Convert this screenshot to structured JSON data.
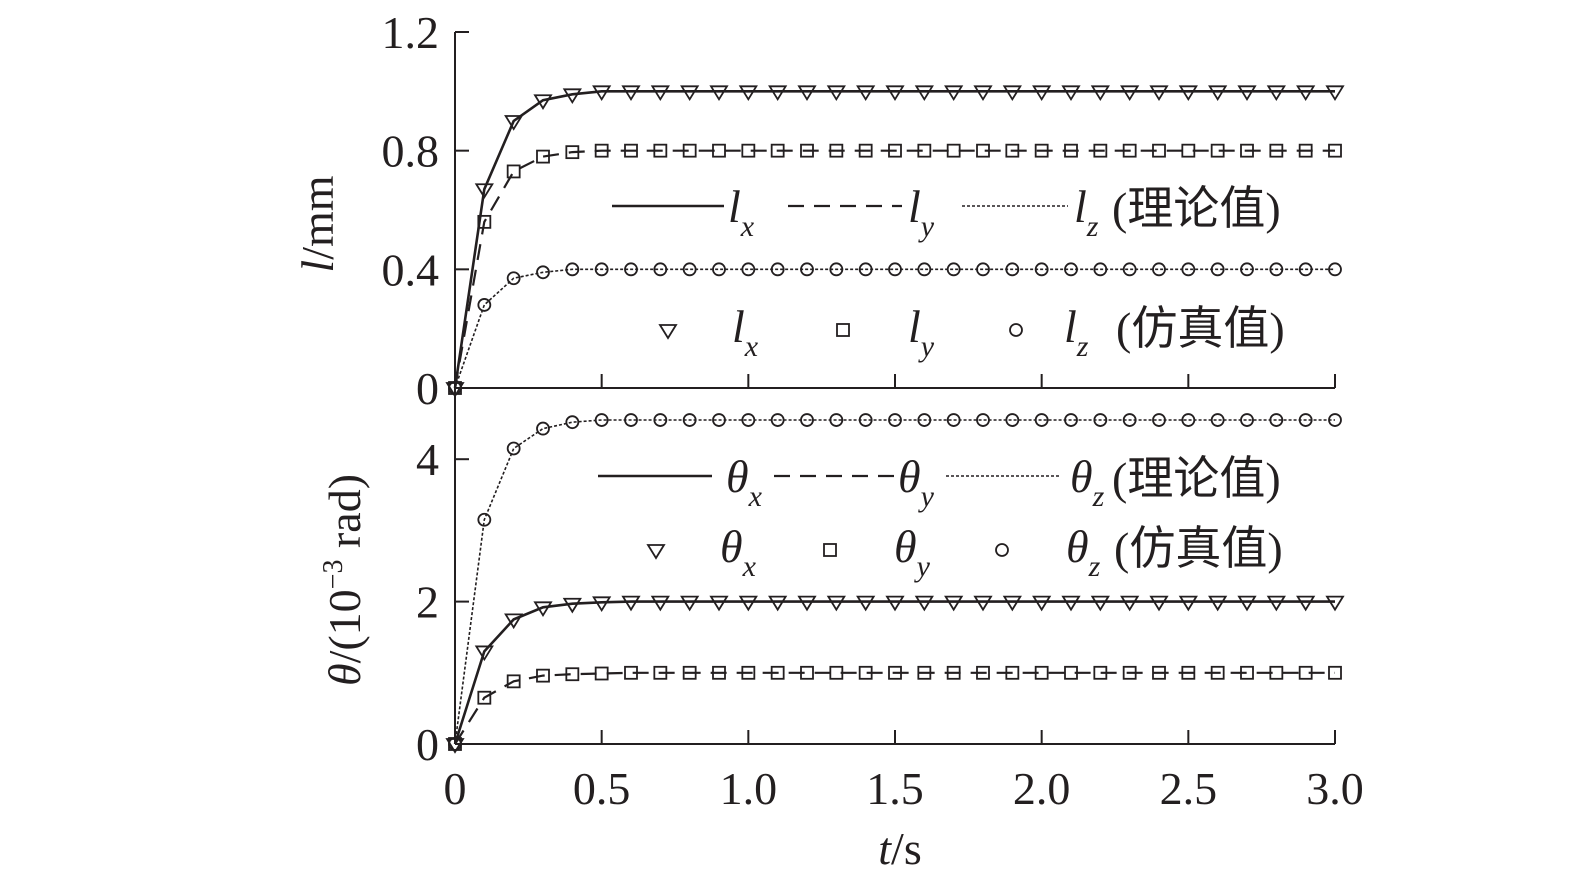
{
  "chart_data": [
    {
      "type": "line",
      "xlabel": {
        "var": "t",
        "unit": "/s"
      },
      "ylabel": {
        "var": "l",
        "unit": "/mm"
      },
      "xlim": [
        0,
        3.0
      ],
      "ylim": [
        0,
        1.2
      ],
      "xticks": [
        "0",
        "0.5",
        "1.0",
        "1.5",
        "2.0",
        "2.5",
        "3.0"
      ],
      "yticks": [
        "0",
        "0.4",
        "0.8",
        "1.2"
      ],
      "legend": {
        "theory_suffix": "(理论值)",
        "sim_suffix": "(仿真值)",
        "entries": [
          {
            "base": "l",
            "sub": "x"
          },
          {
            "base": "l",
            "sub": "y"
          },
          {
            "base": "l",
            "sub": "z"
          }
        ]
      },
      "x": [
        0,
        0.1,
        0.2,
        0.3,
        0.4,
        0.5,
        0.6,
        0.7,
        0.8,
        0.9,
        1.0,
        1.1,
        1.2,
        1.3,
        1.4,
        1.5,
        1.6,
        1.7,
        1.8,
        1.9,
        2.0,
        2.1,
        2.2,
        2.3,
        2.4,
        2.5,
        2.6,
        2.7,
        2.8,
        2.9,
        3.0
      ],
      "series": [
        {
          "name": "l_x",
          "line": "solid",
          "marker": "triangle",
          "values": [
            0,
            0.67,
            0.9,
            0.97,
            0.99,
            1.0,
            1.0,
            1.0,
            1.0,
            1.0,
            1.0,
            1.0,
            1.0,
            1.0,
            1.0,
            1.0,
            1.0,
            1.0,
            1.0,
            1.0,
            1.0,
            1.0,
            1.0,
            1.0,
            1.0,
            1.0,
            1.0,
            1.0,
            1.0,
            1.0,
            1.0
          ]
        },
        {
          "name": "l_y",
          "line": "dashed",
          "marker": "square",
          "values": [
            0,
            0.56,
            0.73,
            0.78,
            0.795,
            0.8,
            0.8,
            0.8,
            0.8,
            0.8,
            0.8,
            0.8,
            0.8,
            0.8,
            0.8,
            0.8,
            0.8,
            0.8,
            0.8,
            0.8,
            0.8,
            0.8,
            0.8,
            0.8,
            0.8,
            0.8,
            0.8,
            0.8,
            0.8,
            0.8,
            0.8
          ]
        },
        {
          "name": "l_z",
          "line": "dotted",
          "marker": "circle",
          "values": [
            0,
            0.28,
            0.37,
            0.39,
            0.4,
            0.4,
            0.4,
            0.4,
            0.4,
            0.4,
            0.4,
            0.4,
            0.4,
            0.4,
            0.4,
            0.4,
            0.4,
            0.4,
            0.4,
            0.4,
            0.4,
            0.4,
            0.4,
            0.4,
            0.4,
            0.4,
            0.4,
            0.4,
            0.4,
            0.4,
            0.4
          ]
        }
      ]
    },
    {
      "type": "line",
      "xlabel": {
        "var": "t",
        "unit": "/s"
      },
      "ylabel": {
        "var": "θ",
        "unit": "/(10",
        "sup": "−3",
        "unit2": " rad)"
      },
      "xlim": [
        0,
        3.0
      ],
      "ylim": [
        0,
        5
      ],
      "xticks": [
        "0",
        "0.5",
        "1.0",
        "1.5",
        "2.0",
        "2.5",
        "3.0"
      ],
      "yticks": [
        "0",
        "2",
        "4"
      ],
      "legend": {
        "theory_suffix": "(理论值)",
        "sim_suffix": "(仿真值)",
        "entries": [
          {
            "base": "θ",
            "sub": "x"
          },
          {
            "base": "θ",
            "sub": "y"
          },
          {
            "base": "θ",
            "sub": "z"
          }
        ]
      },
      "x": [
        0,
        0.1,
        0.2,
        0.3,
        0.4,
        0.5,
        0.6,
        0.7,
        0.8,
        0.9,
        1.0,
        1.1,
        1.2,
        1.3,
        1.4,
        1.5,
        1.6,
        1.7,
        1.8,
        1.9,
        2.0,
        2.1,
        2.2,
        2.3,
        2.4,
        2.5,
        2.6,
        2.7,
        2.8,
        2.9,
        3.0
      ],
      "series": [
        {
          "name": "θ_x",
          "line": "solid",
          "marker": "triangle",
          "values": [
            0,
            1.3,
            1.75,
            1.92,
            1.97,
            1.99,
            2.0,
            2.0,
            2.0,
            2.0,
            2.0,
            2.0,
            2.0,
            2.0,
            2.0,
            2.0,
            2.0,
            2.0,
            2.0,
            2.0,
            2.0,
            2.0,
            2.0,
            2.0,
            2.0,
            2.0,
            2.0,
            2.0,
            2.0,
            2.0,
            2.0
          ]
        },
        {
          "name": "θ_y",
          "line": "dashed",
          "marker": "square",
          "values": [
            0,
            0.65,
            0.88,
            0.96,
            0.98,
            0.99,
            1.0,
            1.0,
            1.0,
            1.0,
            1.0,
            1.0,
            1.0,
            1.0,
            1.0,
            1.0,
            1.0,
            1.0,
            1.0,
            1.0,
            1.0,
            1.0,
            1.0,
            1.0,
            1.0,
            1.0,
            1.0,
            1.0,
            1.0,
            1.0,
            1.0
          ]
        },
        {
          "name": "θ_z",
          "line": "dotted",
          "marker": "circle",
          "values": [
            0,
            3.15,
            4.15,
            4.43,
            4.52,
            4.55,
            4.55,
            4.55,
            4.55,
            4.55,
            4.55,
            4.55,
            4.55,
            4.55,
            4.55,
            4.55,
            4.55,
            4.55,
            4.55,
            4.55,
            4.55,
            4.55,
            4.55,
            4.55,
            4.55,
            4.55,
            4.55,
            4.55,
            4.55,
            4.55,
            4.55
          ]
        }
      ]
    }
  ]
}
